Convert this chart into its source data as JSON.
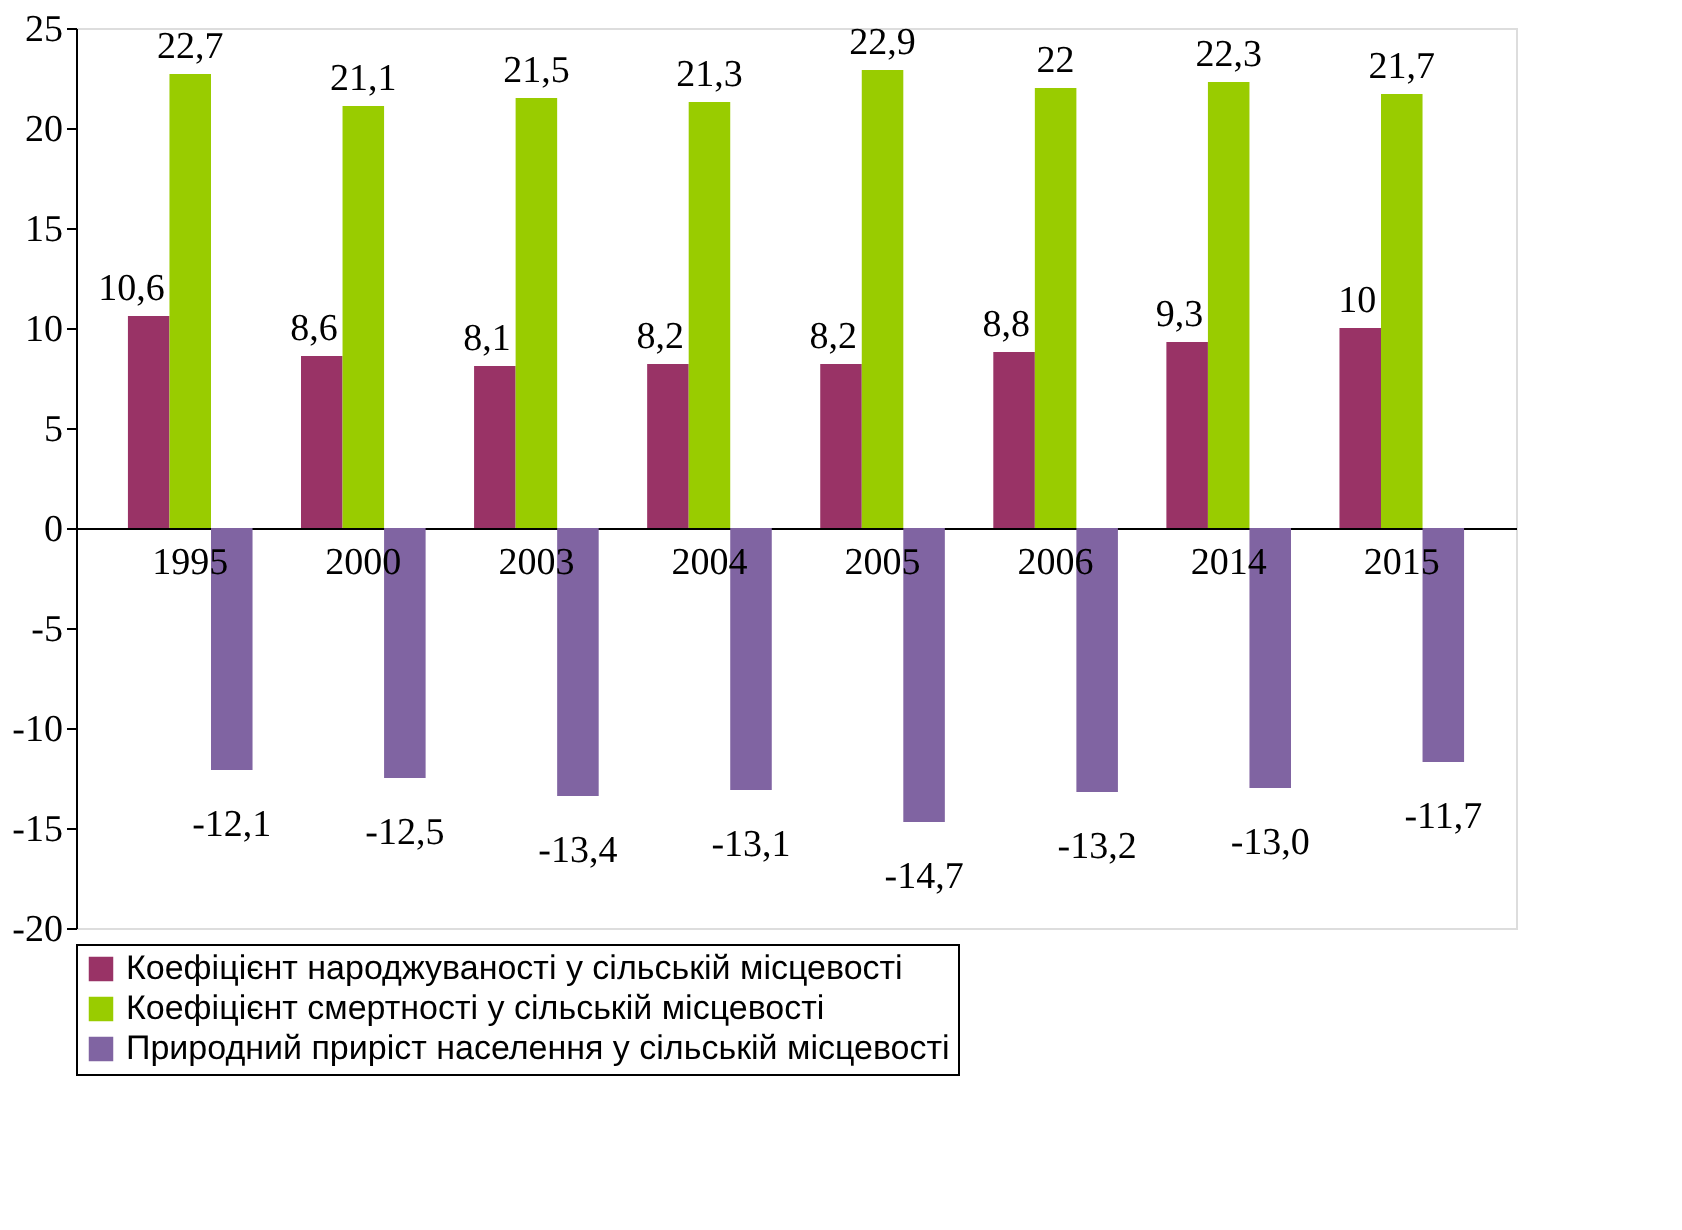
{
  "chart_data": {
    "type": "bar",
    "categories": [
      "1995",
      "2000",
      "2003",
      "2004",
      "2005",
      "2006",
      "2014",
      "2015"
    ],
    "series": [
      {
        "name": "Коефіцієнт народжуваності у сільській місцевості",
        "color": "#993366",
        "values": [
          10.6,
          8.6,
          8.1,
          8.2,
          8.2,
          8.8,
          9.3,
          10
        ],
        "value_labels": [
          "10,6",
          "8,6",
          "8,1",
          "8,2",
          "8,2",
          "8,8",
          "9,3",
          "10"
        ]
      },
      {
        "name": "Коефіцієнт смертності у сільській місцевості",
        "color": "#99cc00",
        "values": [
          22.7,
          21.1,
          21.5,
          21.3,
          22.9,
          22,
          22.3,
          21.7
        ],
        "value_labels": [
          "22,7",
          "21,1",
          "21,5",
          "21,3",
          "22,9",
          "22",
          "22,3",
          "21,7"
        ]
      },
      {
        "name": "Природний приріст населення у сільській місцевості",
        "color": "#8064a2",
        "values": [
          -12.1,
          -12.5,
          -13.4,
          -13.1,
          -14.7,
          -13.2,
          -13.0,
          -11.7
        ],
        "value_labels": [
          "-12,1",
          "-12,5",
          "-13,4",
          "-13,1",
          "-14,7",
          "-13,2",
          "-13,0",
          "-11,7"
        ]
      }
    ],
    "ylim": [
      -20,
      25
    ],
    "yticks": [
      -20,
      -15,
      -10,
      -5,
      0,
      5,
      10,
      15,
      20,
      25
    ],
    "grid": false,
    "legend": "bottom"
  }
}
